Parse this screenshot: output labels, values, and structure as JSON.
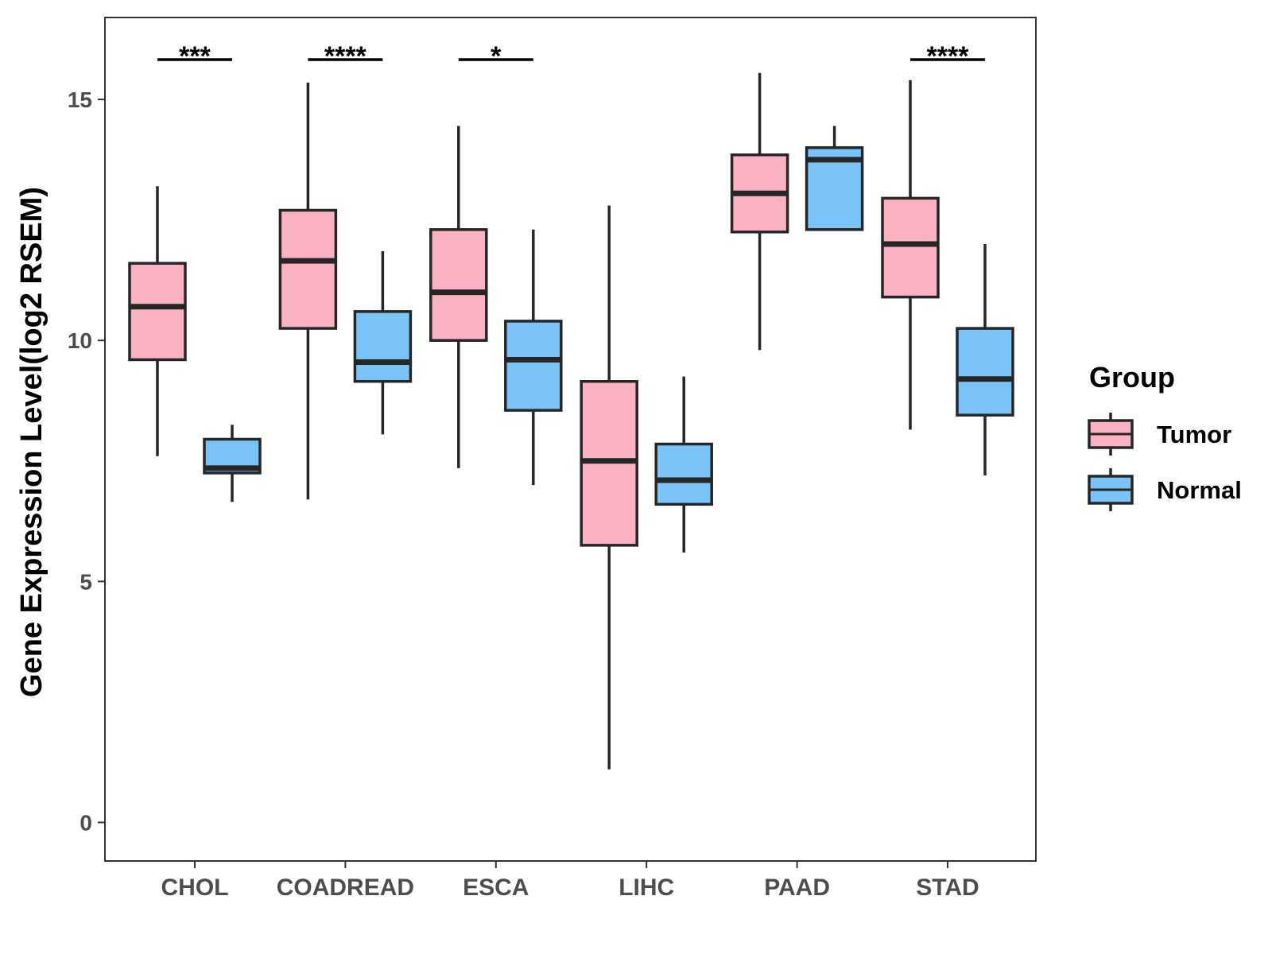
{
  "chart_data": {
    "type": "boxplot",
    "ylabel": "Gene Expression Level(log2 RSEM)",
    "xlabel": "",
    "ylim": [
      -0.8,
      16.7
    ],
    "yticks": [
      0,
      5,
      10,
      15
    ],
    "categories": [
      "CHOL",
      "COADREAD",
      "ESCA",
      "LIHC",
      "PAAD",
      "STAD"
    ],
    "legend": {
      "title": "Group",
      "position": "right",
      "entries": [
        {
          "name": "Tumor",
          "color": "#FBB1C2"
        },
        {
          "name": "Normal",
          "color": "#7AC3F8"
        }
      ]
    },
    "series": [
      {
        "name": "Tumor",
        "color": "#FBB1C2",
        "boxes": [
          {
            "category": "CHOL",
            "whisker_low": 7.6,
            "q1": 9.6,
            "median": 10.7,
            "q3": 11.6,
            "whisker_high": 13.2
          },
          {
            "category": "COADREAD",
            "whisker_low": 6.7,
            "q1": 10.25,
            "median": 11.65,
            "q3": 12.7,
            "whisker_high": 15.35
          },
          {
            "category": "ESCA",
            "whisker_low": 7.35,
            "q1": 10.0,
            "median": 11.0,
            "q3": 12.3,
            "whisker_high": 14.45
          },
          {
            "category": "LIHC",
            "whisker_low": 1.1,
            "q1": 5.75,
            "median": 7.5,
            "q3": 9.15,
            "whisker_high": 12.8
          },
          {
            "category": "PAAD",
            "whisker_low": 9.8,
            "q1": 12.25,
            "median": 13.05,
            "q3": 13.85,
            "whisker_high": 15.55
          },
          {
            "category": "STAD",
            "whisker_low": 8.15,
            "q1": 10.9,
            "median": 12.0,
            "q3": 12.95,
            "whisker_high": 15.4
          }
        ]
      },
      {
        "name": "Normal",
        "color": "#7AC3F8",
        "boxes": [
          {
            "category": "CHOL",
            "whisker_low": 6.65,
            "q1": 7.25,
            "median": 7.35,
            "q3": 7.95,
            "whisker_high": 8.25
          },
          {
            "category": "COADREAD",
            "whisker_low": 8.05,
            "q1": 9.15,
            "median": 9.55,
            "q3": 10.6,
            "whisker_high": 11.85
          },
          {
            "category": "ESCA",
            "whisker_low": 7.0,
            "q1": 8.55,
            "median": 9.6,
            "q3": 10.4,
            "whisker_high": 12.3
          },
          {
            "category": "LIHC",
            "whisker_low": 5.6,
            "q1": 6.6,
            "median": 7.1,
            "q3": 7.85,
            "whisker_high": 9.25
          },
          {
            "category": "PAAD",
            "whisker_low": 12.3,
            "q1": 12.3,
            "median": 13.75,
            "q3": 14.0,
            "whisker_high": 14.45
          },
          {
            "category": "STAD",
            "whisker_low": 7.2,
            "q1": 8.45,
            "median": 9.2,
            "q3": 10.25,
            "whisker_high": 12.0
          }
        ]
      }
    ],
    "significance": [
      {
        "category": "CHOL",
        "label": "***"
      },
      {
        "category": "COADREAD",
        "label": "****"
      },
      {
        "category": "ESCA",
        "label": "*"
      },
      {
        "category": "STAD",
        "label": "****"
      }
    ]
  }
}
